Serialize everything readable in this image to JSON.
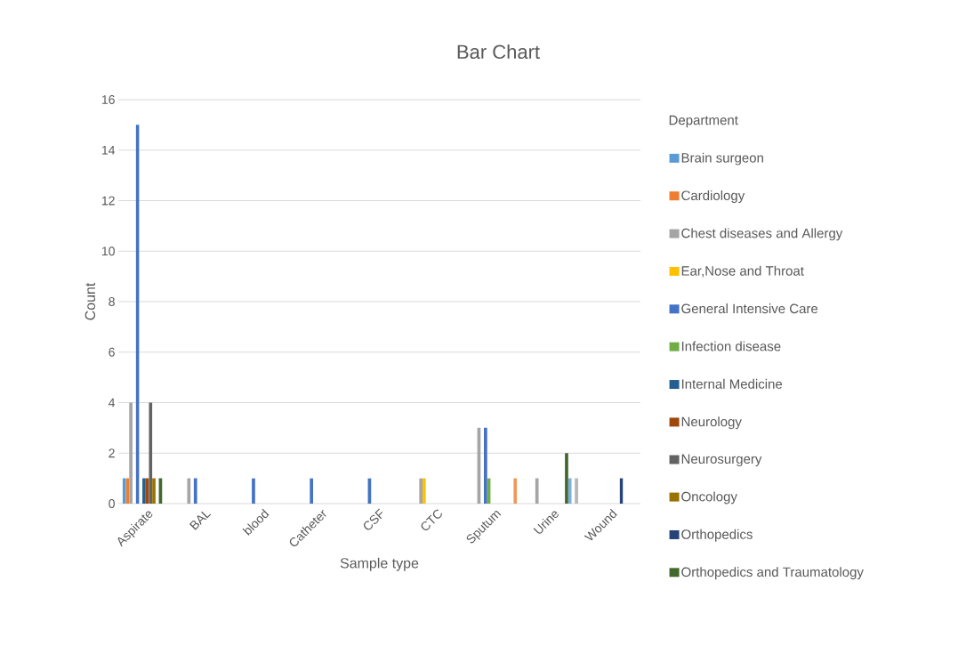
{
  "chart_data": {
    "type": "bar",
    "title": "Bar Chart",
    "xlabel": "Sample type",
    "ylabel": "Count",
    "legend_title": "Department",
    "legend": "right",
    "grid": "y",
    "categories": [
      "Aspirate",
      "BAL",
      "blood",
      "Catheter",
      "CSF",
      "CTC",
      "Sputum",
      "Urine",
      "Wound"
    ],
    "ylim": [
      0,
      16
    ],
    "yticks": [
      0,
      2,
      4,
      6,
      8,
      10,
      12,
      14,
      16
    ],
    "series": [
      {
        "name": "Brain surgeon",
        "color": "#5b9bd5",
        "values": [
          1,
          null,
          null,
          null,
          null,
          null,
          null,
          null,
          null
        ]
      },
      {
        "name": "Cardiology",
        "color": "#ed7d31",
        "values": [
          1,
          null,
          null,
          null,
          null,
          null,
          null,
          null,
          null
        ]
      },
      {
        "name": "Chest diseases and Allergy",
        "color": "#a5a5a5",
        "values": [
          4,
          1,
          null,
          null,
          null,
          1,
          3,
          1,
          null
        ]
      },
      {
        "name": "Ear,Nose and Throat",
        "color": "#ffc000",
        "values": [
          null,
          null,
          null,
          null,
          null,
          1,
          null,
          null,
          null
        ]
      },
      {
        "name": "General Intensive Care",
        "color": "#4472c4",
        "values": [
          15,
          1,
          1,
          1,
          1,
          null,
          3,
          null,
          null
        ]
      },
      {
        "name": "Infection disease",
        "color": "#70ad47",
        "values": [
          null,
          null,
          null,
          null,
          null,
          null,
          1,
          null,
          null
        ]
      },
      {
        "name": "Internal Medicine",
        "color": "#255e91",
        "values": [
          1,
          null,
          null,
          null,
          null,
          null,
          null,
          null,
          null
        ]
      },
      {
        "name": "Neurology",
        "color": "#9e480e",
        "values": [
          1,
          null,
          null,
          null,
          null,
          null,
          null,
          null,
          null
        ]
      },
      {
        "name": "Neurosurgery",
        "color": "#636363",
        "values": [
          4,
          null,
          null,
          null,
          null,
          null,
          null,
          null,
          null
        ]
      },
      {
        "name": "Oncology",
        "color": "#997300",
        "values": [
          1,
          null,
          null,
          null,
          null,
          null,
          null,
          null,
          null
        ]
      },
      {
        "name": "Orthopedics",
        "color": "#264478",
        "values": [
          null,
          null,
          null,
          null,
          null,
          null,
          null,
          null,
          1
        ]
      },
      {
        "name": "Orthopedics and Traumatology",
        "color": "#43682b",
        "values": [
          1,
          null,
          null,
          null,
          null,
          null,
          null,
          2,
          null
        ]
      },
      {
        "color": "#7cafdd",
        "values": [
          null,
          null,
          null,
          null,
          null,
          null,
          null,
          1,
          null
        ]
      },
      {
        "color": "#f1975a",
        "values": [
          null,
          null,
          null,
          null,
          null,
          null,
          1,
          null,
          null
        ]
      },
      {
        "color": "#b7b7b7",
        "values": [
          null,
          null,
          null,
          null,
          null,
          null,
          null,
          1,
          null
        ]
      }
    ]
  }
}
